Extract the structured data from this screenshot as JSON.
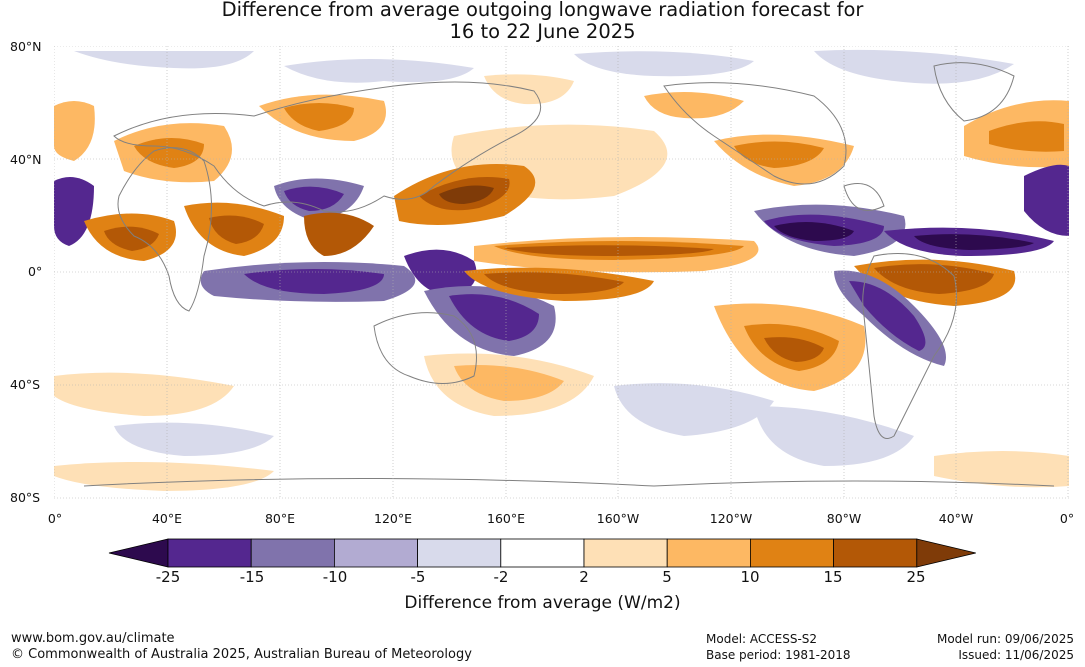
{
  "title": {
    "line1": "Difference from average outgoing longwave radiation forecast for",
    "line2": "16 to 22 June 2025"
  },
  "axes": {
    "lat_labels": [
      "80°N",
      "40°N",
      "0°",
      "40°S",
      "80°S"
    ],
    "lon_labels": [
      "0°",
      "40°E",
      "80°E",
      "120°E",
      "160°E",
      "160°W",
      "120°W",
      "80°W",
      "40°W",
      "0°"
    ]
  },
  "colorbar": {
    "ticks": [
      "-25",
      "-15",
      "-10",
      "-5",
      "-2",
      "2",
      "5",
      "10",
      "15",
      "25"
    ],
    "colors": [
      "#2d0a4e",
      "#54278f",
      "#8073ac",
      "#b2abd2",
      "#d8daeb",
      "#ffffff",
      "#fee0b6",
      "#fdb863",
      "#e08214",
      "#b35806",
      "#7f3b08"
    ],
    "unit_label": "Difference from average (W/m2)"
  },
  "footer": {
    "url": "www.bom.gov.au/climate",
    "copyright": "© Commonwealth of Australia 2025, Australian Bureau of Meteorology",
    "model": "Model: ACCESS-S2",
    "base_period": "Base period: 1981-2018",
    "model_run": "Model run: 09/06/2025",
    "issued": "Issued: 11/06/2025"
  }
}
